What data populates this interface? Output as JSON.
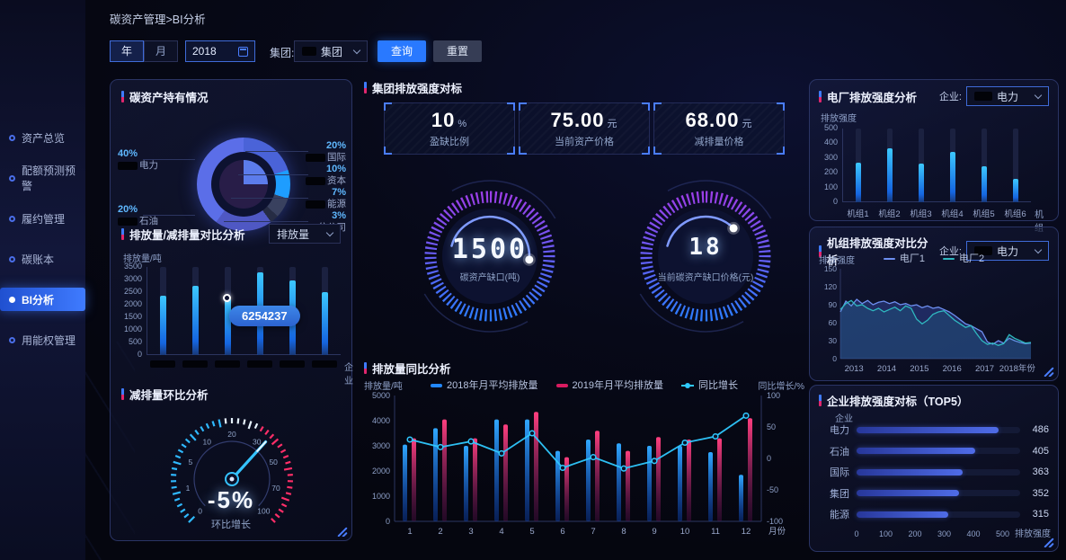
{
  "page": {
    "breadcrumb": "碳资产管理>BI分析"
  },
  "sidebar": {
    "items": [
      {
        "label": "资产总览",
        "active": false
      },
      {
        "label": "配额预测预警",
        "active": false
      },
      {
        "label": "履约管理",
        "active": false
      },
      {
        "label": "碳账本",
        "active": false
      },
      {
        "label": "BI分析",
        "active": true
      },
      {
        "label": "用能权管理",
        "active": false
      }
    ]
  },
  "filters": {
    "year_tab": "年",
    "month_tab": "月",
    "date_value": "2018",
    "group_label": "集团:",
    "group_select_value": "集团",
    "query_button": "查询",
    "reset_button": "重置"
  },
  "panels": {
    "holdings": {
      "title": "碳资产持有情况"
    },
    "emission": {
      "title": "排放量/减排量对比分析",
      "select_value": "排放量"
    },
    "mom": {
      "title": "减排量环比分析",
      "value": "-5%",
      "label": "环比增长"
    },
    "benchmark": {
      "title": "集团排放强度对标",
      "cards": [
        {
          "value": "10",
          "unit": "%",
          "label": "盈缺比例"
        },
        {
          "value": "75.00",
          "unit": "元",
          "label": "当前资产价格"
        },
        {
          "value": "68.00",
          "unit": "元",
          "label": "减排量价格"
        }
      ],
      "gauges": [
        {
          "value": "1500",
          "label": "碳资产缺口(吨)"
        },
        {
          "value": "18",
          "label": "当前碳资产缺口价格(元)"
        }
      ]
    },
    "yoy": {
      "title": "排放量同比分析"
    },
    "plant": {
      "title": "电厂排放强度分析",
      "enterprise_label": "企业:",
      "select_value": "电力"
    },
    "unit": {
      "title": "机组排放强度对比分析",
      "enterprise_label": "企业:",
      "select_value": "电力"
    },
    "top5": {
      "title": "企业排放强度对标（TOP5）"
    }
  },
  "chart_data": [
    {
      "id": "holdings",
      "type": "pie",
      "title": "碳资产持有情况",
      "slices": [
        {
          "label": "国际",
          "value": 20,
          "color": "#4a63d8"
        },
        {
          "label": "资本",
          "value": 10,
          "color": "#1e9dff"
        },
        {
          "label": "能源",
          "value": 7,
          "color": "#39415f"
        },
        {
          "label": "分公司",
          "value": 3,
          "color": "#262c44"
        },
        {
          "label": "石油",
          "value": 20,
          "color": "#4f58c4"
        },
        {
          "label": "电力",
          "value": 40,
          "color": "#5b6ee8"
        }
      ],
      "label_layout": {
        "left": [
          "电力",
          "石油"
        ],
        "right": [
          "国际",
          "资本",
          "能源",
          "分公司"
        ]
      }
    },
    {
      "id": "emission",
      "type": "bar",
      "title": "排放量/减排量对比分析",
      "ylabel": "排放量/吨",
      "xlabel": "企业",
      "ymax": 3500,
      "ystep": 500,
      "categories_redacted": 6,
      "values": [
        2350,
        2750,
        2250,
        3300,
        2950,
        2500
      ],
      "tooltip": {
        "index": 2,
        "text": "6254237"
      }
    },
    {
      "id": "mom_gauge",
      "type": "gauge",
      "title": "减排量环比分析",
      "ticks": [
        0,
        1,
        5,
        10,
        20,
        30,
        50,
        70,
        100
      ],
      "value_display": "-5%",
      "label": "环比增长",
      "needle_at_tick": 30
    },
    {
      "id": "yoy",
      "type": "bar",
      "title": "排放量同比分析",
      "categories": [
        "1",
        "2",
        "3",
        "4",
        "5",
        "6",
        "7",
        "8",
        "9",
        "10",
        "11",
        "12"
      ],
      "xlabel": "月份",
      "left_axis": {
        "label": "排放量/吨",
        "min": 0,
        "max": 5000,
        "step": 1000
      },
      "right_axis": {
        "label": "同比增长/%",
        "min": -100,
        "max": 100,
        "step": 50
      },
      "series": [
        {
          "name": "2018年月平均排放量",
          "type": "bar",
          "color": "#2288ff",
          "values": [
            3050,
            3700,
            3000,
            4050,
            4050,
            2800,
            3250,
            3100,
            3000,
            3000,
            2750,
            1850
          ]
        },
        {
          "name": "2019年月平均排放量",
          "type": "bar",
          "color": "#d81b60",
          "values": [
            3300,
            4050,
            3300,
            3850,
            4350,
            2550,
            3600,
            2800,
            3350,
            3250,
            3300,
            4100
          ]
        },
        {
          "name": "同比增长",
          "type": "line",
          "axis": "right",
          "color": "#2fc9ff",
          "values": [
            30,
            18,
            27,
            8,
            40,
            -15,
            2,
            -16,
            -4,
            25,
            35,
            68
          ]
        }
      ]
    },
    {
      "id": "plant",
      "type": "bar",
      "title": "电厂排放强度分析",
      "ylabel": "排放强度",
      "xlabel": "机组",
      "ymax": 500,
      "ystep": 100,
      "categories": [
        "机组1",
        "机组2",
        "机组3",
        "机组4",
        "机组5",
        "机组6"
      ],
      "values": [
        270,
        365,
        260,
        340,
        245,
        160
      ]
    },
    {
      "id": "unit",
      "type": "line",
      "title": "机组排放强度对比分析",
      "ylabel": "排放强度",
      "xlabel": "年份",
      "ymax": 150,
      "ystep": 30,
      "x_ticks": [
        "2013",
        "2014",
        "2015",
        "2016",
        "2017",
        "2018"
      ],
      "series": [
        {
          "name": "电厂1",
          "color": "#6d8ff0",
          "values": [
            78,
            96,
            88,
            99,
            92,
            97,
            90,
            94,
            96,
            92,
            95,
            90,
            92,
            88,
            90,
            85,
            88,
            84,
            86,
            82,
            78,
            72,
            65,
            58,
            55,
            50,
            45,
            28,
            24,
            30,
            26,
            34,
            30,
            27,
            25,
            26
          ]
        },
        {
          "name": "电厂2",
          "color": "#2fb8c0",
          "values": [
            82,
            92,
            97,
            88,
            90,
            84,
            80,
            84,
            78,
            82,
            86,
            80,
            88,
            84,
            66,
            58,
            64,
            74,
            78,
            80,
            72,
            64,
            58,
            52,
            55,
            42,
            30,
            24,
            26,
            22,
            25,
            40,
            34,
            30,
            26,
            27
          ]
        }
      ]
    },
    {
      "id": "top5",
      "type": "hbar",
      "title": "企业排放强度对标（TOP5）",
      "ylabel": "企业",
      "xlabel": "排放强度",
      "xmax": 560,
      "x_ticks": [
        0,
        100,
        200,
        300,
        400,
        500
      ],
      "categories": [
        "电力",
        "石油",
        "国际",
        "集团",
        "能源"
      ],
      "values": [
        486,
        405,
        363,
        352,
        315
      ]
    }
  ]
}
